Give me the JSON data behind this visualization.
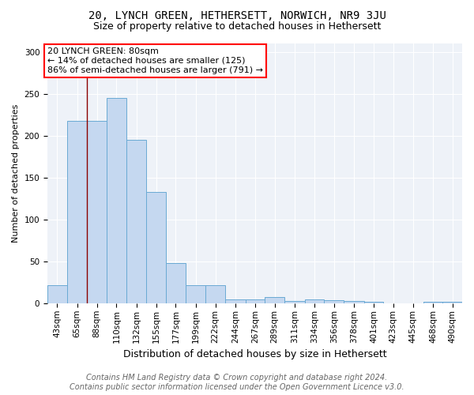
{
  "title": "20, LYNCH GREEN, HETHERSETT, NORWICH, NR9 3JU",
  "subtitle": "Size of property relative to detached houses in Hethersett",
  "xlabel": "Distribution of detached houses by size in Hethersett",
  "ylabel": "Number of detached properties",
  "footer_line1": "Contains HM Land Registry data © Crown copyright and database right 2024.",
  "footer_line2": "Contains public sector information licensed under the Open Government Licence v3.0.",
  "bin_labels": [
    "43sqm",
    "65sqm",
    "88sqm",
    "110sqm",
    "132sqm",
    "155sqm",
    "177sqm",
    "199sqm",
    "222sqm",
    "244sqm",
    "267sqm",
    "289sqm",
    "311sqm",
    "334sqm",
    "356sqm",
    "378sqm",
    "401sqm",
    "423sqm",
    "445sqm",
    "468sqm",
    "490sqm"
  ],
  "bar_heights": [
    22,
    218,
    218,
    245,
    195,
    133,
    48,
    22,
    22,
    5,
    5,
    7,
    3,
    5,
    4,
    3,
    2,
    0,
    0,
    2,
    2
  ],
  "bar_color": "#c5d8f0",
  "bar_edge_color": "#6aaad4",
  "annotation_text": "20 LYNCH GREEN: 80sqm\n← 14% of detached houses are smaller (125)\n86% of semi-detached houses are larger (791) →",
  "annotation_box_color": "white",
  "annotation_box_edge_color": "red",
  "red_line_x": 88,
  "ylim": [
    0,
    310
  ],
  "yticks": [
    0,
    50,
    100,
    150,
    200,
    250,
    300
  ],
  "bin_edges_sqm": [
    43,
    65,
    88,
    110,
    132,
    155,
    177,
    199,
    222,
    244,
    267,
    289,
    311,
    334,
    356,
    378,
    401,
    423,
    445,
    468,
    490
  ],
  "title_fontsize": 10,
  "subtitle_fontsize": 9,
  "xlabel_fontsize": 9,
  "ylabel_fontsize": 8,
  "tick_fontsize": 7.5,
  "footer_fontsize": 7,
  "annotation_fontsize": 8,
  "bg_color": "#ffffff",
  "plot_bg_color": "#eef2f8"
}
